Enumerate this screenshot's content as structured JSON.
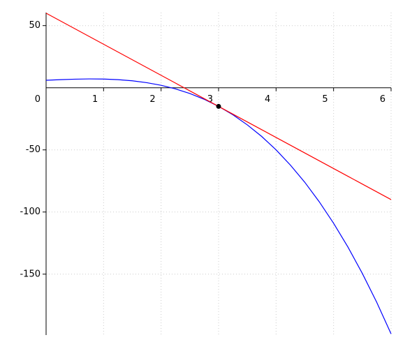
{
  "chart_data": {
    "type": "line",
    "x": [
      0,
      0.25,
      0.5,
      0.75,
      1,
      1.25,
      1.5,
      1.75,
      2,
      2.25,
      2.5,
      2.75,
      3,
      3.25,
      3.5,
      3.75,
      4,
      4.25,
      4.5,
      4.75,
      5,
      5.25,
      5.5,
      5.75,
      6
    ],
    "series": [
      {
        "color": "#0000ff",
        "values": [
          6,
          6.5,
          6.9,
          7.1,
          7,
          6.5,
          5.6,
          4.1,
          2,
          -0.9,
          -4.6,
          -9.3,
          -15,
          -21.8,
          -29.9,
          -39.2,
          -50,
          -62.3,
          -76.1,
          -91.7,
          -109,
          -128.2,
          -149.4,
          -172.6,
          -198
        ]
      },
      {
        "color": "#ff0000",
        "values": [
          60,
          53.75,
          47.5,
          41.25,
          35,
          28.75,
          22.5,
          16.25,
          10,
          3.75,
          -2.5,
          -8.75,
          -15,
          -21.25,
          -27.5,
          -33.75,
          -40,
          -46.25,
          -52.5,
          -58.75,
          -65,
          -71.25,
          -77.5,
          -83.75,
          -90
        ]
      }
    ],
    "points": [
      {
        "x": 3,
        "y": -15,
        "color": "#000000"
      }
    ],
    "xlim": [
      0,
      6
    ],
    "ylim": [
      -199,
      60.5
    ],
    "xticks": [
      0,
      1,
      2,
      3,
      4,
      5,
      6
    ],
    "yticks": [
      -150,
      -100,
      -50,
      50
    ],
    "grid": true
  }
}
